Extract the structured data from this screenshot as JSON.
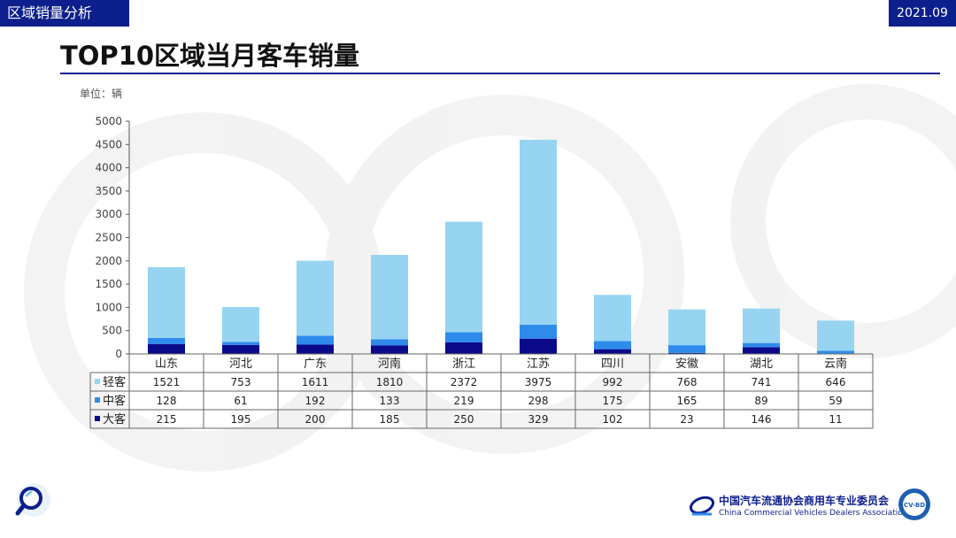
{
  "header": {
    "section": "区域销量分析",
    "date": "2021.09"
  },
  "page_title": "TOP10区域当月客车销量",
  "unit_label": "单位：辆",
  "footer": {
    "org_cn": "中国汽车流通协会商用车专业委员会",
    "org_en": "China Commercial Vehicles Dealers Association",
    "badge": "CV-BD"
  },
  "colors": {
    "light": "#96d4f2",
    "medium": "#2e8bec",
    "large": "#0a0a8a",
    "brand": "#0d1f8c"
  },
  "icons": [
    "search-logo-icon",
    "cda-logo-icon",
    "cvbd-seal-icon"
  ],
  "chart_data": {
    "type": "bar",
    "stacked": true,
    "categories": [
      "山东",
      "河北",
      "广东",
      "河南",
      "浙江",
      "江苏",
      "四川",
      "安徽",
      "湖北",
      "云南"
    ],
    "series": [
      {
        "name": "大客",
        "color": "#0a0a8a",
        "values": [
          215,
          195,
          200,
          185,
          250,
          329,
          102,
          23,
          146,
          11
        ]
      },
      {
        "name": "中客",
        "color": "#2e8bec",
        "values": [
          128,
          61,
          192,
          133,
          219,
          298,
          175,
          165,
          89,
          59
        ]
      },
      {
        "name": "轻客",
        "color": "#96d4f2",
        "values": [
          1521,
          753,
          1611,
          1810,
          2372,
          3975,
          992,
          768,
          741,
          646
        ]
      }
    ],
    "table_order": [
      "轻客",
      "中客",
      "大客"
    ],
    "ylim": [
      0,
      5000
    ],
    "yticks": [
      "0",
      "500",
      "1000",
      "1500",
      "2000",
      "2500",
      "3000",
      "3500",
      "4000",
      "4500",
      "5000"
    ],
    "grid": false,
    "legend": "data-table"
  }
}
